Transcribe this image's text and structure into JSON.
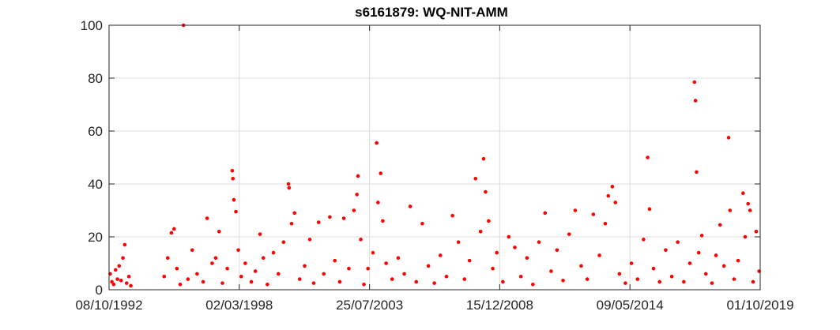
{
  "chart_data": {
    "type": "scatter",
    "title": "s6161879: WQ-NIT-AMM",
    "xlabel": "",
    "ylabel": "",
    "x_axis_kind": "date",
    "xlim": [
      "1992-10-08",
      "2019-10-01"
    ],
    "ylim": [
      0,
      100
    ],
    "x_ticks": [
      "1992-10-08",
      "1998-03-02",
      "2003-07-25",
      "2008-12-15",
      "2014-05-09",
      "2019-10-01"
    ],
    "x_tick_labels": [
      "08/10/1992",
      "02/03/1998",
      "25/07/2003",
      "15/12/2008",
      "09/05/2014",
      "01/10/2019"
    ],
    "y_ticks": [
      0,
      20,
      40,
      60,
      80,
      100
    ],
    "y_tick_labels": [
      "0",
      "20",
      "40",
      "60",
      "80",
      "100"
    ],
    "grid": true,
    "legend": "none",
    "marker_color": "#ff0000",
    "series": [
      {
        "points": [
          [
            "1992-10-25",
            6.0
          ],
          [
            "1992-11-20",
            3.0
          ],
          [
            "1992-12-18",
            2.0
          ],
          [
            "1993-01-15",
            7.5
          ],
          [
            "1993-02-12",
            4.0
          ],
          [
            "1993-03-10",
            9.0
          ],
          [
            "1993-04-08",
            3.5
          ],
          [
            "1993-05-06",
            12.0
          ],
          [
            "1993-06-03",
            17.0
          ],
          [
            "1993-07-01",
            2.5
          ],
          [
            "1993-08-05",
            5.0
          ],
          [
            "1993-09-02",
            1.5
          ],
          [
            "1995-01-20",
            5.0
          ],
          [
            "1995-03-15",
            12.0
          ],
          [
            "1995-05-10",
            21.5
          ],
          [
            "1995-06-20",
            23.0
          ],
          [
            "1995-08-01",
            8.0
          ],
          [
            "1995-09-20",
            2.0
          ],
          [
            "1995-11-10",
            100.0
          ],
          [
            "1996-01-15",
            4.0
          ],
          [
            "1996-03-20",
            15.0
          ],
          [
            "1996-06-01",
            6.0
          ],
          [
            "1996-09-01",
            3.0
          ],
          [
            "1996-11-01",
            27.0
          ],
          [
            "1997-01-15",
            10.0
          ],
          [
            "1997-03-10",
            12.0
          ],
          [
            "1997-05-01",
            22.0
          ],
          [
            "1997-06-20",
            2.5
          ],
          [
            "1997-09-01",
            8.0
          ],
          [
            "1997-11-15",
            45.0
          ],
          [
            "1997-11-25",
            42.0
          ],
          [
            "1997-12-10",
            34.0
          ],
          [
            "1998-01-10",
            29.5
          ],
          [
            "1998-02-15",
            15.0
          ],
          [
            "1998-04-01",
            5.0
          ],
          [
            "1998-06-01",
            10.0
          ],
          [
            "1998-09-01",
            3.0
          ],
          [
            "1998-11-01",
            7.0
          ],
          [
            "1999-01-10",
            21.0
          ],
          [
            "1999-03-01",
            12.0
          ],
          [
            "1999-05-01",
            2.0
          ],
          [
            "1999-08-01",
            14.0
          ],
          [
            "1999-10-15",
            6.0
          ],
          [
            "2000-01-01",
            18.0
          ],
          [
            "2000-03-15",
            40.0
          ],
          [
            "2000-03-25",
            38.5
          ],
          [
            "2000-05-01",
            25.0
          ],
          [
            "2000-06-15",
            29.0
          ],
          [
            "2000-09-01",
            4.0
          ],
          [
            "2000-11-15",
            9.0
          ],
          [
            "2001-02-01",
            19.0
          ],
          [
            "2001-04-01",
            2.5
          ],
          [
            "2001-06-15",
            25.5
          ],
          [
            "2001-09-01",
            6.0
          ],
          [
            "2001-12-01",
            27.5
          ],
          [
            "2002-02-15",
            11.0
          ],
          [
            "2002-05-01",
            3.0
          ],
          [
            "2002-07-01",
            27.0
          ],
          [
            "2002-09-15",
            8.0
          ],
          [
            "2002-12-01",
            30.0
          ],
          [
            "2003-01-15",
            36.0
          ],
          [
            "2003-02-01",
            43.0
          ],
          [
            "2003-03-15",
            19.0
          ],
          [
            "2003-05-01",
            2.0
          ],
          [
            "2003-07-01",
            8.0
          ],
          [
            "2003-09-15",
            14.0
          ],
          [
            "2003-11-10",
            55.5
          ],
          [
            "2003-12-01",
            33.0
          ],
          [
            "2004-01-10",
            44.0
          ],
          [
            "2004-02-10",
            26.0
          ],
          [
            "2004-04-01",
            10.0
          ],
          [
            "2004-07-01",
            4.0
          ],
          [
            "2004-10-01",
            12.0
          ],
          [
            "2005-01-01",
            6.0
          ],
          [
            "2005-04-01",
            31.5
          ],
          [
            "2005-07-01",
            3.0
          ],
          [
            "2005-10-01",
            25.0
          ],
          [
            "2006-01-01",
            9.0
          ],
          [
            "2006-04-01",
            2.5
          ],
          [
            "2006-07-01",
            13.0
          ],
          [
            "2006-10-01",
            5.0
          ],
          [
            "2007-01-01",
            28.0
          ],
          [
            "2007-04-01",
            18.0
          ],
          [
            "2007-07-01",
            4.0
          ],
          [
            "2007-09-15",
            11.0
          ],
          [
            "2007-12-15",
            42.0
          ],
          [
            "2008-03-01",
            22.0
          ],
          [
            "2008-04-15",
            49.5
          ],
          [
            "2008-05-15",
            37.0
          ],
          [
            "2008-07-01",
            26.0
          ],
          [
            "2008-09-01",
            8.0
          ],
          [
            "2008-11-01",
            14.0
          ],
          [
            "2009-02-01",
            3.0
          ],
          [
            "2009-05-01",
            20.0
          ],
          [
            "2009-08-01",
            16.0
          ],
          [
            "2009-11-01",
            5.0
          ],
          [
            "2010-02-01",
            12.0
          ],
          [
            "2010-05-01",
            2.0
          ],
          [
            "2010-08-01",
            18.0
          ],
          [
            "2010-11-01",
            29.0
          ],
          [
            "2011-02-01",
            7.0
          ],
          [
            "2011-05-01",
            15.0
          ],
          [
            "2011-08-01",
            3.5
          ],
          [
            "2011-11-01",
            21.0
          ],
          [
            "2012-02-01",
            30.0
          ],
          [
            "2012-05-01",
            9.0
          ],
          [
            "2012-08-01",
            4.0
          ],
          [
            "2012-11-01",
            28.5
          ],
          [
            "2013-02-01",
            13.0
          ],
          [
            "2013-05-01",
            25.0
          ],
          [
            "2013-06-15",
            35.5
          ],
          [
            "2013-08-15",
            39.0
          ],
          [
            "2013-10-01",
            33.0
          ],
          [
            "2013-12-01",
            6.0
          ],
          [
            "2014-03-01",
            2.5
          ],
          [
            "2014-06-01",
            10.0
          ],
          [
            "2014-09-01",
            4.0
          ],
          [
            "2014-12-01",
            19.0
          ],
          [
            "2015-02-01",
            50.0
          ],
          [
            "2015-03-01",
            30.5
          ],
          [
            "2015-05-01",
            8.0
          ],
          [
            "2015-08-01",
            3.0
          ],
          [
            "2015-11-01",
            15.0
          ],
          [
            "2016-02-01",
            5.0
          ],
          [
            "2016-05-01",
            18.0
          ],
          [
            "2016-08-01",
            3.0
          ],
          [
            "2016-11-01",
            10.0
          ],
          [
            "2017-01-10",
            78.5
          ],
          [
            "2017-01-25",
            71.5
          ],
          [
            "2017-02-10",
            44.5
          ],
          [
            "2017-03-15",
            14.0
          ],
          [
            "2017-05-01",
            20.5
          ],
          [
            "2017-07-01",
            6.0
          ],
          [
            "2017-10-01",
            2.5
          ],
          [
            "2017-12-01",
            13.0
          ],
          [
            "2018-02-01",
            24.5
          ],
          [
            "2018-04-01",
            9.0
          ],
          [
            "2018-06-10",
            57.5
          ],
          [
            "2018-07-01",
            30.0
          ],
          [
            "2018-09-01",
            4.0
          ],
          [
            "2018-11-01",
            11.0
          ],
          [
            "2019-01-15",
            36.5
          ],
          [
            "2019-02-15",
            20.0
          ],
          [
            "2019-04-01",
            32.5
          ],
          [
            "2019-05-01",
            30.0
          ],
          [
            "2019-06-15",
            3.0
          ],
          [
            "2019-08-01",
            22.0
          ],
          [
            "2019-09-15",
            7.0
          ]
        ]
      }
    ]
  }
}
